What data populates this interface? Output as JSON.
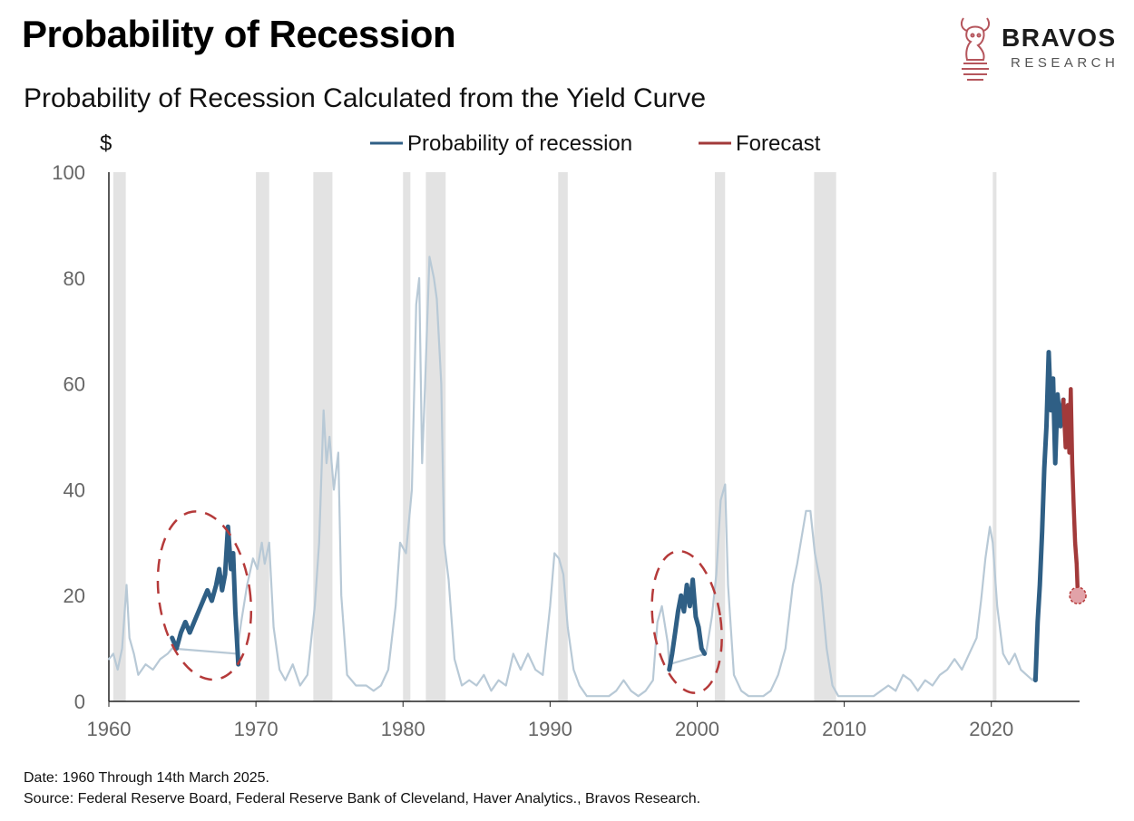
{
  "header": {
    "title": "Probability of Recession",
    "subtitle": "Probability of Recession Calculated from the Yield Curve"
  },
  "brand": {
    "name": "BRAVOS",
    "sub": "RESEARCH",
    "icon": "bull-knight-icon",
    "color": "#a0454c"
  },
  "footer": {
    "date_note": "Date: 1960 Through 14th March 2025.",
    "source_note": "Source: Federal Reserve Board, Federal Reserve Bank of Cleveland, Haver Analytics., Bravos Research."
  },
  "chart_data": {
    "type": "line",
    "ylabel": "$",
    "xlim": [
      1960,
      2026
    ],
    "ylim": [
      0,
      100
    ],
    "x_ticks": [
      1960,
      1970,
      1980,
      1990,
      2000,
      2010,
      2020
    ],
    "y_ticks": [
      0,
      20,
      40,
      60,
      80,
      100
    ],
    "legend": {
      "placement": "top-center",
      "items": [
        {
          "label": "Probability of recession",
          "color": "#2f5f85"
        },
        {
          "label": "Forecast",
          "color": "#a23a3a"
        }
      ]
    },
    "recession_shading": [
      [
        1960.3,
        1961.15
      ],
      [
        1970.0,
        1970.9
      ],
      [
        1973.9,
        1975.2
      ],
      [
        1980.0,
        1980.5
      ],
      [
        1981.55,
        1982.9
      ],
      [
        1990.55,
        1991.2
      ],
      [
        2001.2,
        2001.9
      ],
      [
        2007.95,
        2009.45
      ],
      [
        2020.1,
        2020.35
      ]
    ],
    "series": [
      {
        "name": "Probability of recession",
        "style": "faded",
        "color": "#b8c9d6",
        "points": [
          [
            1960.0,
            8
          ],
          [
            1960.3,
            9
          ],
          [
            1960.6,
            6
          ],
          [
            1960.9,
            10
          ],
          [
            1961.2,
            22
          ],
          [
            1961.4,
            12
          ],
          [
            1961.7,
            9
          ],
          [
            1962.0,
            5
          ],
          [
            1962.5,
            7
          ],
          [
            1963.0,
            6
          ],
          [
            1963.5,
            8
          ],
          [
            1964.0,
            9
          ],
          [
            1964.3,
            10
          ],
          [
            1968.7,
            9
          ],
          [
            1969.0,
            15
          ],
          [
            1969.4,
            22
          ],
          [
            1969.8,
            27
          ],
          [
            1970.1,
            25
          ],
          [
            1970.4,
            30
          ],
          [
            1970.6,
            26
          ],
          [
            1970.9,
            30
          ],
          [
            1971.2,
            14
          ],
          [
            1971.6,
            6
          ],
          [
            1972.0,
            4
          ],
          [
            1972.5,
            7
          ],
          [
            1973.0,
            3
          ],
          [
            1973.5,
            5
          ],
          [
            1974.0,
            18
          ],
          [
            1974.3,
            30
          ],
          [
            1974.6,
            55
          ],
          [
            1974.8,
            45
          ],
          [
            1975.0,
            50
          ],
          [
            1975.3,
            40
          ],
          [
            1975.6,
            47
          ],
          [
            1975.8,
            20
          ],
          [
            1976.2,
            5
          ],
          [
            1976.8,
            3
          ],
          [
            1977.5,
            3
          ],
          [
            1978.0,
            2
          ],
          [
            1978.5,
            3
          ],
          [
            1979.0,
            6
          ],
          [
            1979.5,
            18
          ],
          [
            1979.8,
            30
          ],
          [
            1980.2,
            28
          ],
          [
            1980.6,
            40
          ],
          [
            1980.9,
            75
          ],
          [
            1981.1,
            80
          ],
          [
            1981.3,
            45
          ],
          [
            1981.5,
            60
          ],
          [
            1981.8,
            84
          ],
          [
            1982.1,
            80
          ],
          [
            1982.3,
            76
          ],
          [
            1982.6,
            60
          ],
          [
            1982.8,
            30
          ],
          [
            1983.1,
            23
          ],
          [
            1983.5,
            8
          ],
          [
            1984.0,
            3
          ],
          [
            1984.5,
            4
          ],
          [
            1985.0,
            3
          ],
          [
            1985.5,
            5
          ],
          [
            1986.0,
            2
          ],
          [
            1986.5,
            4
          ],
          [
            1987.0,
            3
          ],
          [
            1987.5,
            9
          ],
          [
            1988.0,
            6
          ],
          [
            1988.5,
            9
          ],
          [
            1989.0,
            6
          ],
          [
            1989.5,
            5
          ],
          [
            1990.0,
            18
          ],
          [
            1990.3,
            28
          ],
          [
            1990.6,
            27
          ],
          [
            1990.9,
            24
          ],
          [
            1991.2,
            14
          ],
          [
            1991.6,
            6
          ],
          [
            1992.0,
            3
          ],
          [
            1992.5,
            1
          ],
          [
            1993.0,
            1
          ],
          [
            1993.5,
            1
          ],
          [
            1994.0,
            1
          ],
          [
            1994.5,
            2
          ],
          [
            1995.0,
            4
          ],
          [
            1995.5,
            2
          ],
          [
            1996.0,
            1
          ],
          [
            1996.5,
            2
          ],
          [
            1997.0,
            4
          ],
          [
            1997.3,
            15
          ],
          [
            1997.6,
            18
          ],
          [
            1998.0,
            11
          ],
          [
            1998.1,
            7
          ],
          [
            2000.6,
            9
          ],
          [
            2001.0,
            16
          ],
          [
            2001.3,
            24
          ],
          [
            2001.6,
            38
          ],
          [
            2001.9,
            41
          ],
          [
            2002.1,
            22
          ],
          [
            2002.5,
            5
          ],
          [
            2003.0,
            2
          ],
          [
            2003.5,
            1
          ],
          [
            2004.0,
            1
          ],
          [
            2004.5,
            1
          ],
          [
            2005.0,
            2
          ],
          [
            2005.5,
            5
          ],
          [
            2006.0,
            10
          ],
          [
            2006.5,
            22
          ],
          [
            2006.8,
            26
          ],
          [
            2007.1,
            31
          ],
          [
            2007.4,
            36
          ],
          [
            2007.7,
            36
          ],
          [
            2008.0,
            28
          ],
          [
            2008.4,
            22
          ],
          [
            2008.8,
            10
          ],
          [
            2009.2,
            3
          ],
          [
            2009.6,
            1
          ],
          [
            2010.0,
            1
          ],
          [
            2010.5,
            1
          ],
          [
            2011.0,
            1
          ],
          [
            2011.5,
            1
          ],
          [
            2012.0,
            1
          ],
          [
            2012.5,
            2
          ],
          [
            2013.0,
            3
          ],
          [
            2013.5,
            2
          ],
          [
            2014.0,
            5
          ],
          [
            2014.5,
            4
          ],
          [
            2015.0,
            2
          ],
          [
            2015.5,
            4
          ],
          [
            2016.0,
            3
          ],
          [
            2016.5,
            5
          ],
          [
            2017.0,
            6
          ],
          [
            2017.5,
            8
          ],
          [
            2018.0,
            6
          ],
          [
            2018.5,
            9
          ],
          [
            2019.0,
            12
          ],
          [
            2019.3,
            19
          ],
          [
            2019.6,
            27
          ],
          [
            2019.9,
            33
          ],
          [
            2020.1,
            30
          ],
          [
            2020.4,
            18
          ],
          [
            2020.8,
            9
          ],
          [
            2021.2,
            7
          ],
          [
            2021.6,
            9
          ],
          [
            2022.0,
            6
          ],
          [
            2022.4,
            5
          ],
          [
            2022.8,
            4
          ],
          [
            2023.0,
            5
          ]
        ]
      },
      {
        "name": "Probability of recession",
        "style": "highlight",
        "color": "#2f5f85",
        "points": [
          [
            1964.3,
            12
          ],
          [
            1964.6,
            10
          ],
          [
            1964.9,
            13
          ],
          [
            1965.2,
            15
          ],
          [
            1965.5,
            13
          ],
          [
            1965.8,
            15
          ],
          [
            1966.1,
            17
          ],
          [
            1966.4,
            19
          ],
          [
            1966.7,
            21
          ],
          [
            1967.0,
            19
          ],
          [
            1967.3,
            22
          ],
          [
            1967.5,
            25
          ],
          [
            1967.7,
            21
          ],
          [
            1967.9,
            24
          ],
          [
            1968.1,
            33
          ],
          [
            1968.3,
            25
          ],
          [
            1968.45,
            28
          ],
          [
            1968.6,
            17
          ],
          [
            1968.8,
            7
          ]
        ]
      },
      {
        "name": "Probability of recession",
        "style": "highlight",
        "color": "#2f5f85",
        "points": [
          [
            1998.1,
            6
          ],
          [
            1998.3,
            9
          ],
          [
            1998.5,
            13
          ],
          [
            1998.7,
            17
          ],
          [
            1998.9,
            20
          ],
          [
            1999.1,
            17
          ],
          [
            1999.3,
            22
          ],
          [
            1999.5,
            18
          ],
          [
            1999.7,
            23
          ],
          [
            1999.9,
            16
          ],
          [
            2000.1,
            14
          ],
          [
            2000.3,
            10
          ],
          [
            2000.5,
            9
          ]
        ]
      },
      {
        "name": "Probability of recession",
        "style": "highlight",
        "color": "#2f5f85",
        "points": [
          [
            2023.0,
            4
          ],
          [
            2023.15,
            15
          ],
          [
            2023.3,
            22
          ],
          [
            2023.45,
            32
          ],
          [
            2023.6,
            44
          ],
          [
            2023.75,
            52
          ],
          [
            2023.9,
            66
          ],
          [
            2024.05,
            55
          ],
          [
            2024.2,
            61
          ],
          [
            2024.35,
            45
          ],
          [
            2024.5,
            58
          ],
          [
            2024.7,
            52
          ],
          [
            2024.9,
            57
          ]
        ]
      },
      {
        "name": "Forecast",
        "style": "forecast",
        "color": "#a23a3a",
        "points": [
          [
            2024.9,
            57
          ],
          [
            2025.05,
            48
          ],
          [
            2025.2,
            56
          ],
          [
            2025.3,
            47
          ],
          [
            2025.4,
            59
          ],
          [
            2025.5,
            45
          ],
          [
            2025.6,
            37
          ],
          [
            2025.7,
            30
          ],
          [
            2025.8,
            26
          ],
          [
            2025.88,
            20
          ]
        ]
      }
    ],
    "highlight_ellipses": [
      {
        "cx": 1966.5,
        "cy": 20,
        "rx": 3.1,
        "ry": 16
      },
      {
        "cx": 1999.3,
        "cy": 15,
        "rx": 2.3,
        "ry": 13.5
      }
    ],
    "end_marker": {
      "x": 2025.88,
      "y": 20
    }
  }
}
